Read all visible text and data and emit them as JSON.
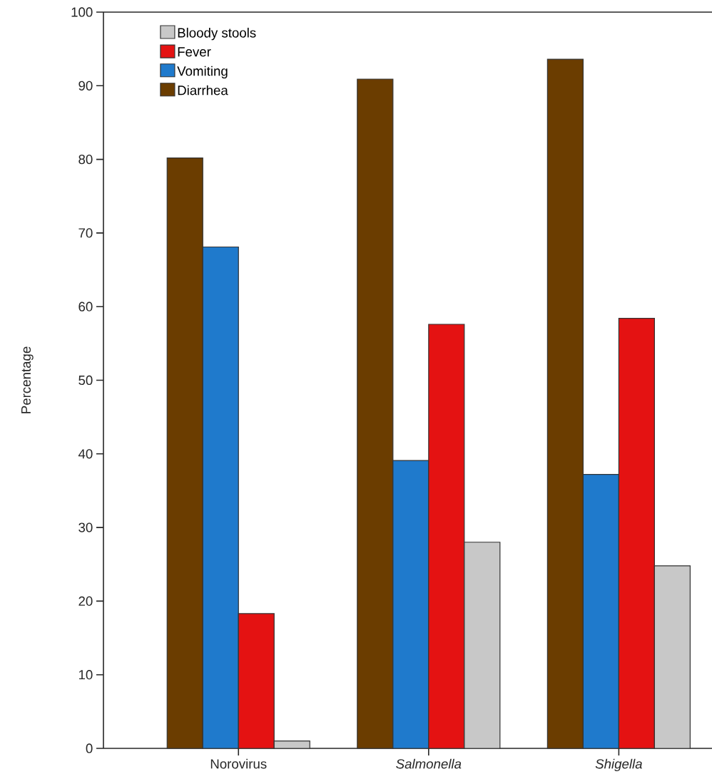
{
  "chart_data": {
    "type": "bar",
    "ylabel": "Percentage",
    "categories": [
      "Norovirus",
      "*Salmonella*",
      "*Shigella*"
    ],
    "series": [
      {
        "name": "Diarrhea",
        "color": "#6b3d00",
        "values": [
          80.2,
          90.9,
          93.6
        ]
      },
      {
        "name": "Vomiting",
        "color": "#1f7acc",
        "values": [
          68.1,
          39.1,
          37.2
        ]
      },
      {
        "name": "Fever",
        "color": "#e41212",
        "values": [
          18.3,
          57.6,
          58.4
        ]
      },
      {
        "name": "Bloody stools",
        "color": "#c8c8c8",
        "values": [
          1.0,
          28.0,
          24.8
        ]
      }
    ],
    "ylim": [
      0,
      100
    ],
    "yticks": [
      0,
      10,
      20,
      30,
      40,
      50,
      60,
      70,
      80,
      90,
      100
    ],
    "legend": "top left"
  }
}
